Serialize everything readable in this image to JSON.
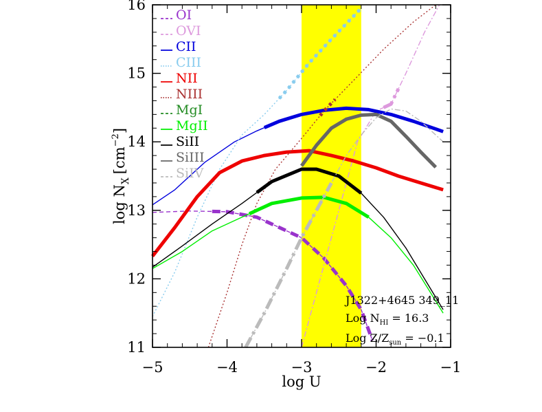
{
  "chart_data": {
    "type": "line",
    "title": "",
    "xlabel": "log U",
    "ylabel_main": "log N",
    "ylabel_sub": "X",
    "ylabel_unit_pre": "[cm",
    "ylabel_unit_exp": "−2",
    "ylabel_unit_post": "]",
    "xlim": [
      -5,
      -1
    ],
    "ylim": [
      11,
      16
    ],
    "x_ticks": [
      {
        "v": -5,
        "label": "−5"
      },
      {
        "v": -4,
        "label": "−4"
      },
      {
        "v": -3,
        "label": "−3"
      },
      {
        "v": -2,
        "label": "−2"
      },
      {
        "v": -1,
        "label": "−1"
      }
    ],
    "y_ticks": [
      {
        "v": 11,
        "label": "11"
      },
      {
        "v": 12,
        "label": "12"
      },
      {
        "v": 13,
        "label": "13"
      },
      {
        "v": 14,
        "label": "14"
      },
      {
        "v": 15,
        "label": "15"
      },
      {
        "v": 16,
        "label": "16"
      }
    ],
    "shaded_band": {
      "x0": -3.0,
      "x1": -2.2,
      "color": "#ffff00"
    },
    "annotations": {
      "object": "J1322+4645 349_11",
      "nhi_main": "Log N",
      "nhi_sub": "HI",
      "nhi_value": " = 16.3",
      "z_main": "Log Z/Z",
      "z_sub": "sun",
      "z_value": " = −0.1"
    },
    "series": [
      {
        "name": "OI",
        "color": "#9933cc",
        "dash": "6,4",
        "points": [
          [
            -5,
            12.97
          ],
          [
            -4.5,
            12.99
          ],
          [
            -4,
            12.98
          ],
          [
            -3.6,
            12.9
          ],
          [
            -3.3,
            12.75
          ],
          [
            -3.0,
            12.6
          ],
          [
            -2.7,
            12.3
          ],
          [
            -2.4,
            11.9
          ],
          [
            -2.2,
            11.55
          ],
          [
            -2.05,
            11.1
          ]
        ],
        "thick": [
          -4.2,
          -2.05
        ]
      },
      {
        "name": "OVI",
        "color": "#dd99dd",
        "dash": "8,3,2,3",
        "points": [
          [
            -3.0,
            11.0
          ],
          [
            -2.75,
            12.0
          ],
          [
            -2.5,
            13.0
          ],
          [
            -2.25,
            14.0
          ],
          [
            -2.0,
            14.45
          ],
          [
            -1.8,
            14.55
          ],
          [
            -1.6,
            15.0
          ],
          [
            -1.35,
            15.6
          ],
          [
            -1.15,
            16.0
          ]
        ],
        "thick": [
          -1.9,
          -1.7
        ]
      },
      {
        "name": "CII",
        "color": "#0000dd",
        "dash": "",
        "points": [
          [
            -5,
            13.08
          ],
          [
            -4.7,
            13.3
          ],
          [
            -4.3,
            13.7
          ],
          [
            -3.9,
            14.0
          ],
          [
            -3.6,
            14.16
          ],
          [
            -3.3,
            14.3
          ],
          [
            -3.0,
            14.4
          ],
          [
            -2.7,
            14.46
          ],
          [
            -2.4,
            14.49
          ],
          [
            -2.1,
            14.47
          ],
          [
            -1.8,
            14.4
          ],
          [
            -1.5,
            14.3
          ],
          [
            -1.1,
            14.15
          ]
        ],
        "thick": [
          -3.5,
          -1.1
        ]
      },
      {
        "name": "CIII",
        "color": "#88ccee",
        "dash": "2,3",
        "points": [
          [
            -5,
            11.45
          ],
          [
            -4.7,
            12.1
          ],
          [
            -4.4,
            12.9
          ],
          [
            -4.1,
            13.6
          ],
          [
            -3.8,
            14.1
          ],
          [
            -3.5,
            14.4
          ],
          [
            -3.2,
            14.75
          ],
          [
            -2.9,
            15.15
          ],
          [
            -2.6,
            15.5
          ],
          [
            -2.2,
            15.95
          ]
        ],
        "thick": [
          -3.3,
          -2.2
        ]
      },
      {
        "name": "NII",
        "color": "#ee0000",
        "dash": "",
        "points": [
          [
            -5,
            12.33
          ],
          [
            -4.7,
            12.75
          ],
          [
            -4.4,
            13.2
          ],
          [
            -4.1,
            13.55
          ],
          [
            -3.8,
            13.72
          ],
          [
            -3.5,
            13.8
          ],
          [
            -3.2,
            13.85
          ],
          [
            -2.9,
            13.87
          ],
          [
            -2.6,
            13.8
          ],
          [
            -2.3,
            13.72
          ],
          [
            -2.0,
            13.62
          ],
          [
            -1.7,
            13.5
          ],
          [
            -1.4,
            13.4
          ],
          [
            -1.1,
            13.3
          ]
        ],
        "thick": [
          -5,
          -1.1
        ]
      },
      {
        "name": "NIII",
        "color": "#aa3333",
        "dash": "2,3",
        "points": [
          [
            -4.25,
            11.0
          ],
          [
            -4.0,
            11.8
          ],
          [
            -3.8,
            12.5
          ],
          [
            -3.6,
            13.1
          ],
          [
            -3.35,
            13.6
          ],
          [
            -3.0,
            14.05
          ],
          [
            -2.7,
            14.45
          ],
          [
            -2.3,
            14.9
          ],
          [
            -1.9,
            15.35
          ],
          [
            -1.5,
            15.75
          ],
          [
            -1.2,
            16.0
          ]
        ],
        "thick": [
          -2.75,
          -2.55
        ]
      },
      {
        "name": "MgI",
        "color": "#228b22",
        "dash": "6,4",
        "points": [],
        "thick": []
      },
      {
        "name": "MgII",
        "color": "#00ee00",
        "dash": "",
        "points": [
          [
            -5,
            12.15
          ],
          [
            -4.6,
            12.4
          ],
          [
            -4.2,
            12.7
          ],
          [
            -3.8,
            12.9
          ],
          [
            -3.4,
            13.1
          ],
          [
            -3.0,
            13.18
          ],
          [
            -2.7,
            13.19
          ],
          [
            -2.4,
            13.1
          ],
          [
            -2.1,
            12.9
          ],
          [
            -1.8,
            12.6
          ],
          [
            -1.5,
            12.2
          ],
          [
            -1.3,
            11.85
          ],
          [
            -1.1,
            11.5
          ]
        ],
        "thick": [
          -3.7,
          -2.1
        ]
      },
      {
        "name": "SiII",
        "color": "#000000",
        "dash": "",
        "points": [
          [
            -5,
            12.17
          ],
          [
            -4.6,
            12.48
          ],
          [
            -4.2,
            12.8
          ],
          [
            -3.8,
            13.1
          ],
          [
            -3.4,
            13.42
          ],
          [
            -3.0,
            13.6
          ],
          [
            -2.8,
            13.6
          ],
          [
            -2.5,
            13.5
          ],
          [
            -2.2,
            13.25
          ],
          [
            -1.9,
            12.9
          ],
          [
            -1.6,
            12.45
          ],
          [
            -1.35,
            12.0
          ],
          [
            -1.1,
            11.55
          ]
        ],
        "thick": [
          -3.6,
          -2.2
        ]
      },
      {
        "name": "SiIII",
        "color": "#666666",
        "dash": "",
        "points": [
          [
            -3.0,
            13.65
          ],
          [
            -2.8,
            13.95
          ],
          [
            -2.6,
            14.2
          ],
          [
            -2.4,
            14.33
          ],
          [
            -2.2,
            14.39
          ],
          [
            -2.0,
            14.4
          ],
          [
            -1.8,
            14.3
          ],
          [
            -1.6,
            14.08
          ],
          [
            -1.4,
            13.85
          ],
          [
            -1.2,
            13.63
          ]
        ],
        "thick": [
          -3.0,
          -1.2
        ]
      },
      {
        "name": "SiIV",
        "color": "#bbbbbb",
        "dash": "8,3,2,3",
        "points": [
          [
            -3.75,
            11.0
          ],
          [
            -3.5,
            11.5
          ],
          [
            -3.2,
            12.15
          ],
          [
            -3.0,
            12.6
          ],
          [
            -2.8,
            13.0
          ],
          [
            -2.6,
            13.4
          ],
          [
            -2.4,
            13.8
          ],
          [
            -2.2,
            14.1
          ],
          [
            -2.0,
            14.35
          ],
          [
            -1.8,
            14.48
          ],
          [
            -1.6,
            14.45
          ],
          [
            -1.4,
            14.3
          ],
          [
            -1.2,
            14.1
          ],
          [
            -1.1,
            14.0
          ]
        ],
        "thick": [
          -3.75,
          -2.6
        ]
      }
    ]
  }
}
